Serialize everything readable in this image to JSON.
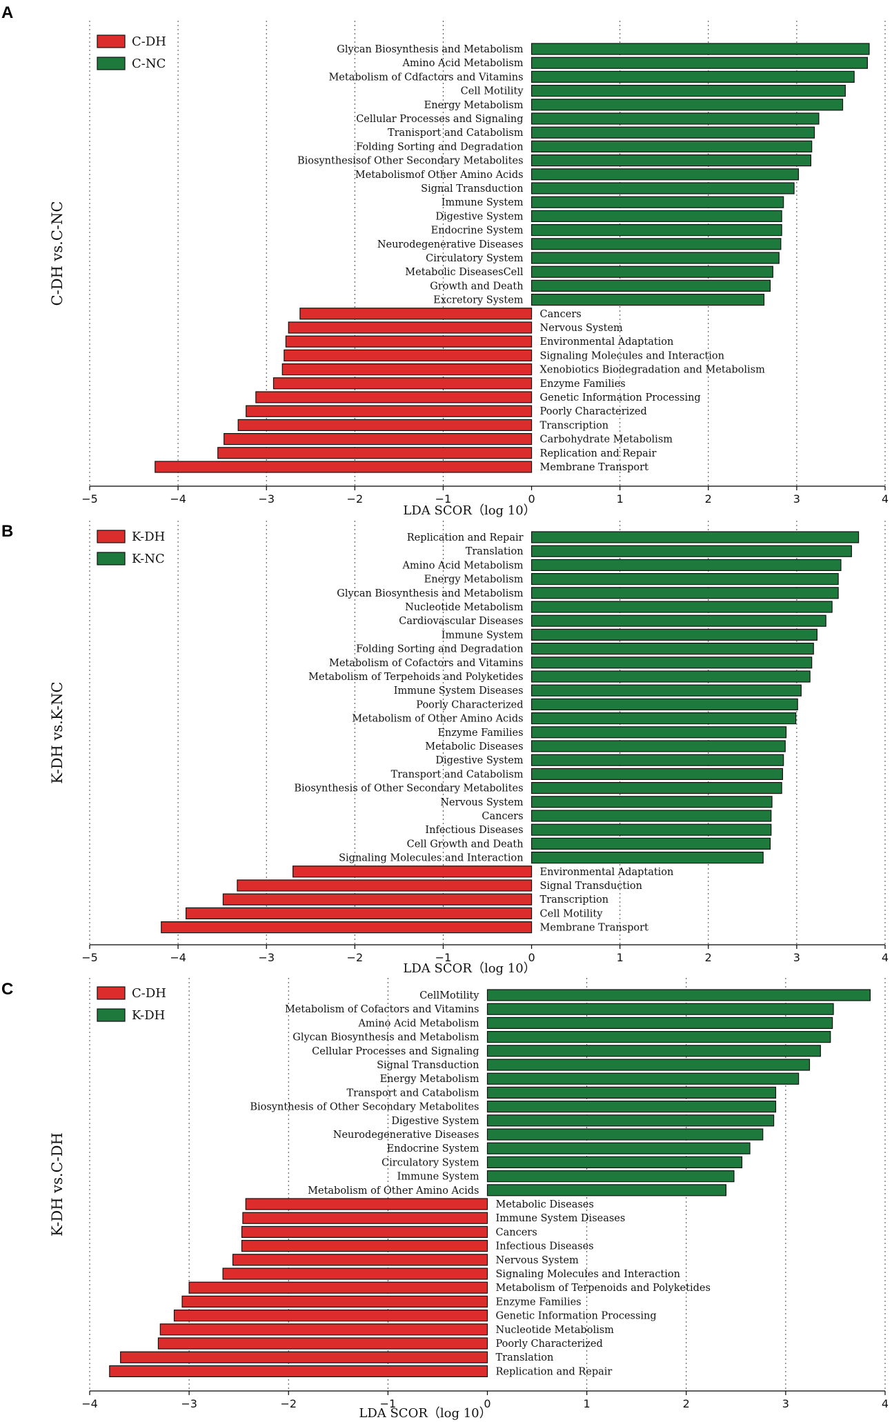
{
  "colors": {
    "negative": "#dd2c2c",
    "positive": "#1d7a3c",
    "edge": "#111111",
    "grid": "#444444"
  },
  "chart_data": [
    {
      "type": "bar",
      "panel_label": "A",
      "ylabel": "C-DH vs.C-NC",
      "xlabel": "LDA SCOR（log 10）",
      "xlim": [
        -5,
        4
      ],
      "xticks": [
        "−5",
        "−4",
        "−3",
        "−2",
        "−1",
        "0",
        "1",
        "2",
        "3",
        "4"
      ],
      "legend": [
        {
          "label": "C-DH",
          "color": "#dd2c2c"
        },
        {
          "label": "C-NC",
          "color": "#1d7a3c"
        }
      ],
      "categories": [
        "Glycan Biosynthesis and Metabolism",
        "Amino Acid Metabolism",
        "Metabolism of Cdfactors and Vitamins",
        "Cell Motility",
        "Energy Metabolism",
        "Cellular Processes and Signaling",
        "Tranisport and Catabolism",
        "Folding Sorting and Degradation",
        "Biosynthesisof Other Secondary Metabolites",
        "Metabolismof Other Amino Acids",
        "Signal Transduction",
        "Immune System",
        "Digestive System",
        "Endocrine System",
        "Neurodegenerative Diseases",
        "Circulatory System",
        "Metabolic DiseasesCell",
        "Growth and Death",
        "Excretory System",
        "Cancers",
        "Nervous System",
        "Environmental Adaptation",
        "Signaling Molecules and Interaction",
        "Xenobiotics Biodegradation and Metabolism",
        "Enzyme Families",
        "Genetic Information Processing",
        "Poorly Characterized",
        "Transcription",
        "Carbohydrate Metabolism",
        "Replication and Repair",
        "Membrane Transport"
      ],
      "values": [
        3.82,
        3.8,
        3.65,
        3.55,
        3.52,
        3.25,
        3.2,
        3.17,
        3.16,
        3.02,
        2.97,
        2.85,
        2.83,
        2.83,
        2.82,
        2.8,
        2.73,
        2.7,
        2.63,
        -2.62,
        -2.75,
        -2.78,
        -2.8,
        -2.82,
        -2.92,
        -3.12,
        -3.23,
        -3.32,
        -3.48,
        -3.55,
        -4.26
      ]
    },
    {
      "type": "bar",
      "panel_label": "B",
      "ylabel": "K-DH vs.K-NC",
      "xlabel": "LDA SCOR（log 10）",
      "xlim": [
        -5,
        4
      ],
      "xticks": [
        "−5",
        "−4",
        "−3",
        "−2",
        "−1",
        "0",
        "1",
        "2",
        "3",
        "4"
      ],
      "legend": [
        {
          "label": "K-DH",
          "color": "#dd2c2c"
        },
        {
          "label": "K-NC",
          "color": "#1d7a3c"
        }
      ],
      "categories": [
        "Replication and Repair",
        "Translation",
        "Amino Acid Metabolism",
        "Energy Metabolism",
        "Glycan Biosynthesis and Metabolism",
        "Nucleotide Metabolism",
        "Cardiovascular Diseases",
        "Immune System",
        "Folding Sorting and Degradation",
        "Metabolism of Cofactors and Vitamins",
        "Metabolism of Terpehoids and Polyketides",
        "Immune System Diseases",
        "Poorly Characterized",
        "Metabolism of Other Amino Acids",
        "Enzyme Families",
        "Metabolic Diseases",
        "Digestive System",
        "Transport and Catabolism",
        "Biosynthesis of Other Secondary Metabolites",
        "Nervous System",
        "Cancers",
        "Infectious Diseases",
        "Cell Growth and Death",
        "Signaling Molecules and Interaction",
        "Environmental Adaptation",
        "Signal Transduction",
        "Transcription",
        "Cell Motility",
        "Membrane Transport"
      ],
      "values": [
        3.7,
        3.62,
        3.5,
        3.47,
        3.47,
        3.4,
        3.33,
        3.23,
        3.19,
        3.17,
        3.15,
        3.05,
        3.01,
        2.99,
        2.88,
        2.87,
        2.85,
        2.84,
        2.83,
        2.72,
        2.71,
        2.71,
        2.7,
        2.62,
        -2.7,
        -3.33,
        -3.49,
        -3.91,
        -4.19
      ]
    },
    {
      "type": "bar",
      "panel_label": "C",
      "ylabel": "K-DH vs.C-DH",
      "xlabel": "LDA SCOR（log 10）",
      "xlim": [
        -4,
        4
      ],
      "xticks": [
        "−4",
        "−3",
        "−2",
        "−1",
        "0",
        "1",
        "2",
        "3",
        "4"
      ],
      "legend": [
        {
          "label": "C-DH",
          "color": "#dd2c2c"
        },
        {
          "label": "K-DH",
          "color": "#1d7a3c"
        }
      ],
      "categories": [
        "CellMotility",
        "Metabolism of Cofactors and Vitamins",
        "Amino Acid Metabolism",
        "Glycan Biosynthesis and Metabolism",
        "Cellular Processes and Signaling",
        "Signal Transduction",
        "Energy Metabolism",
        "Transport and Catabolism",
        "Biosynthesis of Other Secondary Metabolites",
        "Digestive System",
        "Neurodegenerative Diseases",
        "Endocrine System",
        "Circulatory System",
        "Immune System",
        "Metabolism of Other Amino Acids",
        "Metabolic Diseases",
        "Immune System Diseases",
        "Cancers",
        "Infectious Diseases",
        "Nervous System",
        "Signaling Molecules and Interaction",
        "Metabolism of Terpenoids and Polyketides",
        "Enzyme Families",
        "Genetic Information Processing",
        "Nucleotide Metabolism",
        "Poorly Characterized",
        "Translation",
        "Replication and Repair"
      ],
      "values": [
        3.85,
        3.48,
        3.47,
        3.45,
        3.35,
        3.24,
        3.13,
        2.9,
        2.9,
        2.88,
        2.77,
        2.64,
        2.56,
        2.48,
        2.4,
        -2.43,
        -2.46,
        -2.47,
        -2.47,
        -2.56,
        -2.66,
        -3.0,
        -3.07,
        -3.15,
        -3.29,
        -3.31,
        -3.69,
        -3.8
      ]
    }
  ]
}
